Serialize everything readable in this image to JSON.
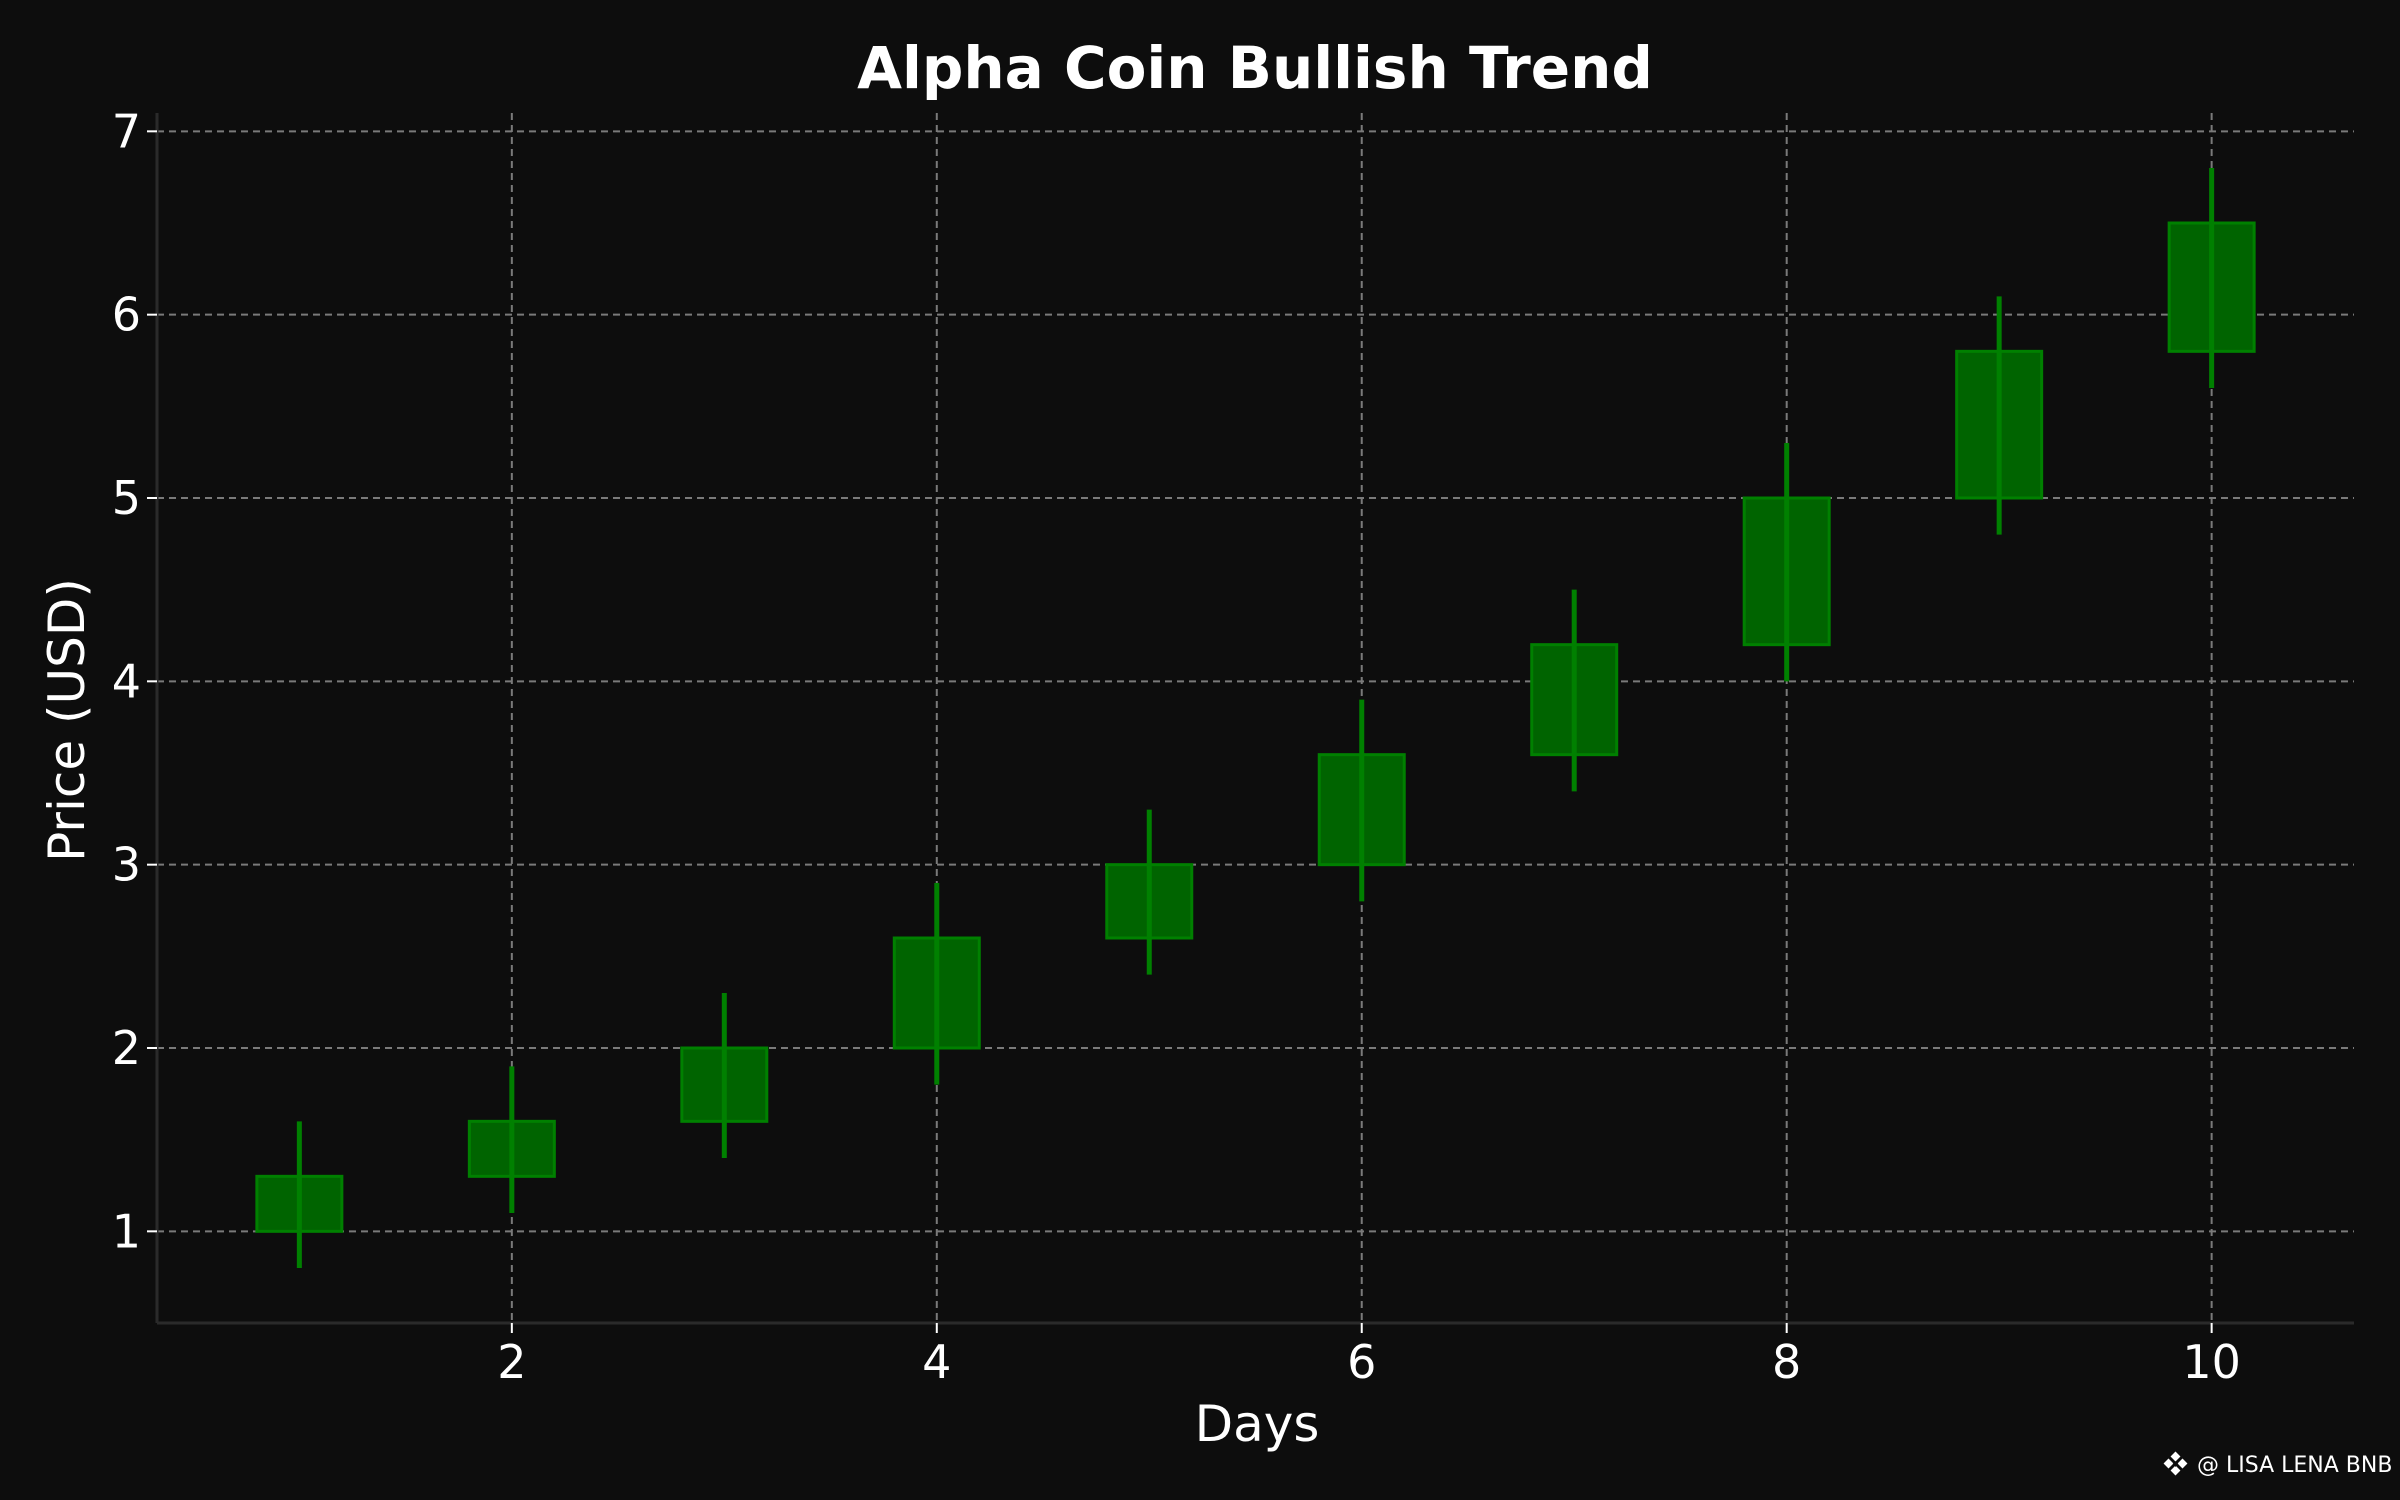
{
  "chart_data": {
    "type": "candlestick",
    "title": "Alpha Coin Bullish Trend",
    "xlabel": "Days",
    "ylabel": "Price (USD)",
    "xlim": [
      0.33,
      10.67
    ],
    "ylim": [
      0.5,
      7.1
    ],
    "xticks": [
      2,
      4,
      6,
      8,
      10
    ],
    "yticks": [
      1,
      2,
      3,
      4,
      5,
      6,
      7
    ],
    "grid": true,
    "candles": [
      {
        "x": 1,
        "open": 1.0,
        "close": 1.3,
        "low": 0.8,
        "high": 1.6
      },
      {
        "x": 2,
        "open": 1.3,
        "close": 1.6,
        "low": 1.1,
        "high": 1.9
      },
      {
        "x": 3,
        "open": 1.6,
        "close": 2.0,
        "low": 1.4,
        "high": 2.3
      },
      {
        "x": 4,
        "open": 2.0,
        "close": 2.6,
        "low": 1.8,
        "high": 2.9
      },
      {
        "x": 5,
        "open": 2.6,
        "close": 3.0,
        "low": 2.4,
        "high": 3.3
      },
      {
        "x": 6,
        "open": 3.0,
        "close": 3.6,
        "low": 2.8,
        "high": 3.9
      },
      {
        "x": 7,
        "open": 3.6,
        "close": 4.2,
        "low": 3.4,
        "high": 4.5
      },
      {
        "x": 8,
        "open": 4.2,
        "close": 5.0,
        "low": 4.0,
        "high": 5.3
      },
      {
        "x": 9,
        "open": 5.0,
        "close": 5.8,
        "low": 4.8,
        "high": 6.1
      },
      {
        "x": 10,
        "open": 5.8,
        "close": 6.5,
        "low": 5.6,
        "high": 6.8
      }
    ],
    "colors": {
      "background": "#0d0d0d",
      "candle_body": "#006400",
      "candle_border": "#008000",
      "wick": "#008000",
      "grid": "#7a7a7a",
      "spine": "#2a2a2a",
      "text": "#ffffff"
    }
  },
  "watermark": {
    "text": "@ LISA LENA BNB",
    "icon": "binance-diamond-icon"
  }
}
